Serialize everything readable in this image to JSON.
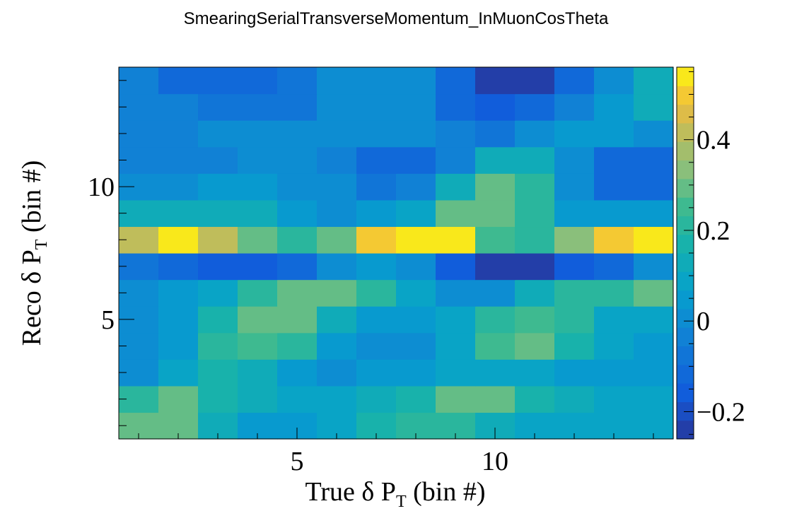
{
  "chart_data": {
    "type": "heatmap",
    "title": "SmearingSerialTransverseMomentum_InMuonCosTheta",
    "xlabel": "True δ P",
    "xlabel_sub": "T",
    "xlabel_suffix": " (bin #)",
    "ylabel": "Reco δ P",
    "ylabel_sub": "T",
    "ylabel_suffix": " (bin #)",
    "x_bins": 14,
    "y_bins": 14,
    "xlim": [
      0.5,
      14.5
    ],
    "ylim": [
      0.5,
      14.5
    ],
    "x_ticks": [
      5,
      10
    ],
    "y_ticks": [
      5,
      10
    ],
    "zlim": [
      -0.26,
      0.56
    ],
    "z_ticks": [
      -0.2,
      0,
      0.2,
      0.4
    ],
    "z_tick_labels": [
      "−0.2",
      "0",
      "0.2",
      "0.4"
    ],
    "values": [
      [
        0.3,
        0.3,
        0.14,
        0.03,
        0.05,
        0.08,
        0.18,
        0.22,
        0.22,
        0.12,
        0.07,
        0.07,
        0.07,
        0.07
      ],
      [
        0.2,
        0.28,
        0.18,
        0.14,
        0.09,
        0.09,
        0.14,
        0.18,
        0.28,
        0.28,
        0.18,
        0.14,
        0.07,
        0.07
      ],
      [
        0.02,
        0.09,
        0.18,
        0.14,
        0.04,
        0.02,
        0.04,
        0.05,
        0.07,
        0.07,
        0.07,
        0.04,
        0.04,
        0.05
      ],
      [
        0.02,
        0.05,
        0.2,
        0.24,
        0.2,
        0.03,
        -0.01,
        0.02,
        0.07,
        0.26,
        0.3,
        0.16,
        0.08,
        0.04
      ],
      [
        0.02,
        0.05,
        0.16,
        0.31,
        0.31,
        0.14,
        0.04,
        0.04,
        0.07,
        0.2,
        0.26,
        0.2,
        0.08,
        0.08
      ],
      [
        0.02,
        0.05,
        0.09,
        0.23,
        0.3,
        0.3,
        0.23,
        0.09,
        -0.01,
        0.02,
        0.14,
        0.2,
        0.23,
        0.28
      ],
      [
        -0.07,
        -0.1,
        -0.16,
        -0.16,
        -0.12,
        0.02,
        0.05,
        0.02,
        -0.16,
        -0.24,
        -0.24,
        -0.16,
        -0.1,
        0.02
      ],
      [
        0.42,
        0.55,
        0.42,
        0.3,
        0.23,
        0.3,
        0.48,
        0.56,
        0.56,
        0.27,
        0.2,
        0.35,
        0.48,
        0.56
      ],
      [
        0.11,
        0.14,
        0.14,
        0.11,
        0.05,
        0.02,
        0.05,
        0.09,
        0.3,
        0.3,
        0.2,
        0.05,
        0.04,
        0.04
      ],
      [
        0.02,
        0.02,
        0.05,
        0.05,
        0.02,
        -0.01,
        -0.07,
        -0.04,
        0.11,
        0.3,
        0.23,
        0.02,
        -0.1,
        -0.1
      ],
      [
        -0.04,
        -0.04,
        -0.04,
        0.02,
        0.02,
        -0.04,
        -0.1,
        -0.1,
        -0.04,
        0.11,
        0.14,
        0.02,
        -0.1,
        -0.12
      ],
      [
        -0.04,
        -0.04,
        0.02,
        0.02,
        0.02,
        0.02,
        0.02,
        0.02,
        -0.04,
        -0.07,
        0.02,
        0.05,
        0.05,
        0.02
      ],
      [
        -0.04,
        -0.04,
        -0.09,
        -0.07,
        -0.07,
        0.02,
        0.02,
        0.02,
        -0.1,
        -0.16,
        -0.1,
        -0.04,
        0.05,
        0.11
      ],
      [
        -0.04,
        -0.1,
        -0.13,
        -0.13,
        -0.07,
        0.02,
        0.02,
        -0.01,
        -0.13,
        -0.26,
        -0.26,
        -0.13,
        0.02,
        0.11
      ]
    ]
  }
}
